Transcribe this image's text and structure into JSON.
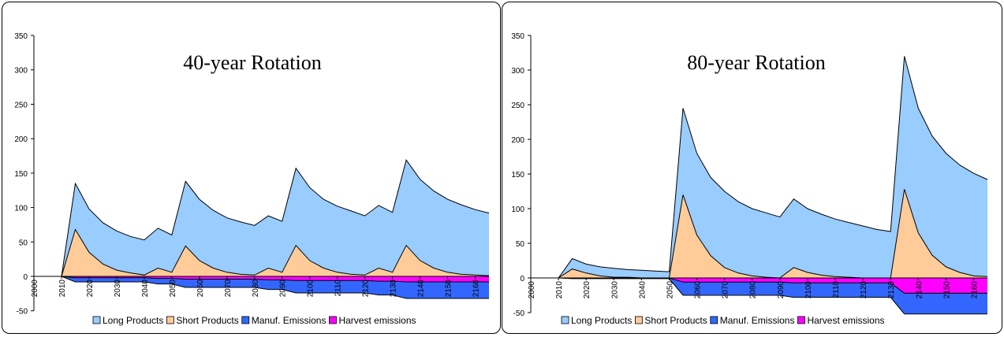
{
  "chart_data": [
    {
      "type": "area",
      "title": "40-year Rotation",
      "xlabel": "",
      "ylabel": "",
      "ylim": [
        -50,
        350
      ],
      "yticks": [
        -50,
        0,
        50,
        100,
        150,
        200,
        250,
        300,
        350
      ],
      "xlim": [
        2000,
        2165
      ],
      "xticks": [
        2000,
        2010,
        2020,
        2030,
        2040,
        2050,
        2060,
        2070,
        2080,
        2090,
        2100,
        2110,
        2120,
        2130,
        2140,
        2150,
        2160
      ],
      "grid": false,
      "legend_position": "bottom",
      "x": [
        2010,
        2015,
        2020,
        2025,
        2030,
        2035,
        2040,
        2045,
        2050,
        2055,
        2060,
        2065,
        2070,
        2075,
        2080,
        2085,
        2090,
        2095,
        2100,
        2105,
        2110,
        2115,
        2120,
        2125,
        2130,
        2135,
        2140,
        2145,
        2150,
        2155,
        2160,
        2165
      ],
      "series": [
        {
          "name": "Long Products",
          "color": "#99ccff",
          "values": [
            0,
            135,
            98,
            78,
            66,
            58,
            53,
            70,
            60,
            138,
            112,
            96,
            85,
            79,
            74,
            88,
            80,
            157,
            129,
            112,
            102,
            95,
            88,
            103,
            93,
            169,
            141,
            124,
            112,
            104,
            97,
            92
          ]
        },
        {
          "name": "Short Products",
          "color": "#ffcc99",
          "values": [
            0,
            68,
            35,
            18,
            9,
            5,
            2,
            12,
            6,
            44,
            23,
            12,
            6,
            3,
            2,
            12,
            6,
            45,
            23,
            12,
            6,
            3,
            2,
            12,
            6,
            45,
            23,
            12,
            6,
            3,
            2,
            1
          ]
        },
        {
          "name": "Manuf. Emissions",
          "color": "#3366ff",
          "values": [
            0,
            -8,
            -8,
            -8,
            -8,
            -8,
            -8,
            -11,
            -11,
            -16,
            -16,
            -16,
            -16,
            -16,
            -16,
            -19,
            -19,
            -24,
            -24,
            -24,
            -24,
            -24,
            -24,
            -27,
            -27,
            -32,
            -32,
            -32,
            -32,
            -32,
            -32,
            -32
          ]
        },
        {
          "name": "Harvest emissions",
          "color": "#ff00ff",
          "values": [
            0,
            -2,
            -2,
            -2,
            -2,
            -2,
            -2,
            -3,
            -3,
            -4,
            -4,
            -4,
            -4,
            -4,
            -4,
            -5,
            -5,
            -6,
            -6,
            -6,
            -6,
            -6,
            -6,
            -7,
            -7,
            -8,
            -8,
            -8,
            -8,
            -8,
            -8,
            -8
          ]
        }
      ]
    },
    {
      "type": "area",
      "title": "80-year Rotation",
      "xlabel": "",
      "ylabel": "",
      "ylim": [
        -50,
        350
      ],
      "yticks": [
        -50,
        0,
        50,
        100,
        150,
        200,
        250,
        300,
        350
      ],
      "xlim": [
        2000,
        2165
      ],
      "xticks": [
        2000,
        2010,
        2020,
        2030,
        2040,
        2050,
        2060,
        2070,
        2080,
        2090,
        2100,
        2110,
        2120,
        2130,
        2140,
        2150,
        2160
      ],
      "grid": false,
      "legend_position": "bottom",
      "x": [
        2010,
        2015,
        2020,
        2025,
        2030,
        2035,
        2040,
        2045,
        2050,
        2055,
        2060,
        2065,
        2070,
        2075,
        2080,
        2085,
        2090,
        2095,
        2100,
        2105,
        2110,
        2115,
        2120,
        2125,
        2130,
        2135,
        2140,
        2145,
        2150,
        2155,
        2160,
        2165
      ],
      "series": [
        {
          "name": "Long Products",
          "color": "#99ccff",
          "values": [
            0,
            28,
            20,
            16,
            14,
            12,
            11,
            10,
            9,
            245,
            180,
            145,
            125,
            110,
            100,
            94,
            88,
            114,
            100,
            92,
            85,
            80,
            75,
            70,
            67,
            320,
            245,
            205,
            180,
            163,
            151,
            142
          ]
        },
        {
          "name": "Short Products",
          "color": "#ffcc99",
          "values": [
            0,
            13,
            7,
            3,
            1,
            1,
            0,
            0,
            0,
            120,
            62,
            32,
            15,
            7,
            3,
            1,
            0,
            15,
            8,
            4,
            2,
            1,
            0,
            0,
            0,
            128,
            65,
            33,
            16,
            8,
            3,
            2
          ]
        },
        {
          "name": "Manuf. Emissions",
          "color": "#3366ff",
          "values": [
            0,
            -1,
            -1,
            -1,
            -1,
            -1,
            -1,
            -1,
            -1,
            -25,
            -25,
            -25,
            -25,
            -25,
            -25,
            -25,
            -25,
            -28,
            -28,
            -28,
            -28,
            -28,
            -28,
            -28,
            -28,
            -52,
            -52,
            -52,
            -52,
            -52,
            -52,
            -52
          ]
        },
        {
          "name": "Harvest emissions",
          "color": "#ff00ff",
          "values": [
            0,
            0,
            0,
            0,
            0,
            0,
            0,
            0,
            0,
            -6,
            -6,
            -6,
            -6,
            -6,
            -6,
            -6,
            -6,
            -7,
            -7,
            -7,
            -7,
            -7,
            -7,
            -7,
            -7,
            -22,
            -22,
            -22,
            -22,
            -22,
            -22,
            -22
          ]
        }
      ]
    }
  ]
}
